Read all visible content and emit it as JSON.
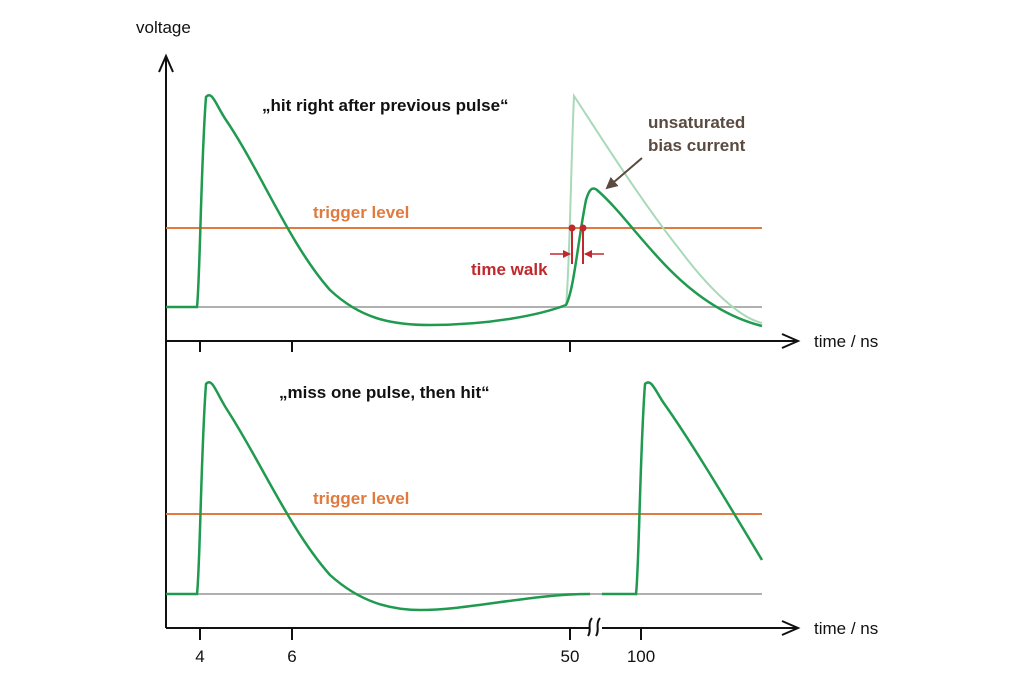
{
  "y_axis_label": "voltage",
  "x_axis_label_top": "time / ns",
  "x_axis_label_bottom": "time / ns",
  "x_tick_labels": [
    "4",
    "6",
    "50",
    "100"
  ],
  "top_panel": {
    "title": "„hit right after previous pulse“",
    "trigger_label": "trigger level",
    "time_walk_label": "time walk",
    "annotation_line1": "unsaturated",
    "annotation_line2": "bias current"
  },
  "bottom_panel": {
    "title": "„miss one pulse, then hit“",
    "trigger_label": "trigger level"
  },
  "colors": {
    "signal": "#1f9a4f",
    "signal_faded": "#a8d9b8",
    "trigger": "#e07a3f",
    "baseline": "#b0b0b0",
    "time_walk": "#c0282e",
    "annotation": "#5a4a3f",
    "axis": "#111111"
  },
  "icons": {
    "axis_break": "axis-break-icon",
    "arrow": "arrow-icon"
  }
}
